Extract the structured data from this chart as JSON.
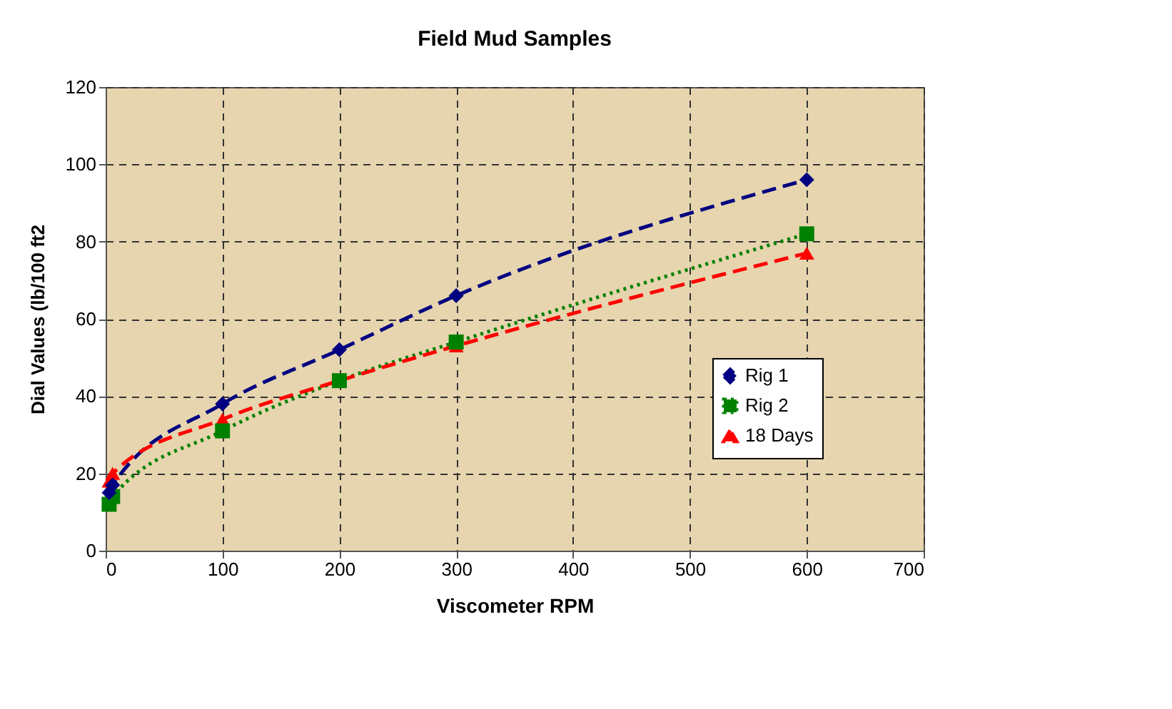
{
  "chart_data": {
    "type": "line",
    "title": "Field Mud Samples",
    "xlabel": "Viscometer RPM",
    "ylabel": "Dial Values (lb/100 ft2",
    "xlim": [
      0,
      700
    ],
    "xticks": [
      0,
      100,
      200,
      300,
      400,
      500,
      600,
      700
    ],
    "ylim": [
      0,
      120
    ],
    "yticks": [
      0,
      20,
      40,
      60,
      80,
      100,
      120
    ],
    "grid": true,
    "legend": "right",
    "series": [
      {
        "name": "Rig 1",
        "color": "#000080",
        "marker": "diamond",
        "line_style": "dashed",
        "x": [
          3,
          6,
          100,
          200,
          300,
          600
        ],
        "values": [
          15,
          17,
          38,
          52,
          66,
          96
        ]
      },
      {
        "name": "Rig 2",
        "color": "#008000",
        "marker": "square",
        "line_style": "dotted",
        "x": [
          3,
          6,
          100,
          200,
          300,
          600
        ],
        "values": [
          12,
          14,
          31,
          44,
          54,
          82
        ]
      },
      {
        "name": "18 Days",
        "color": "#ff0000",
        "marker": "triangle",
        "line_style": "dashed",
        "x": [
          3,
          6,
          100,
          200,
          300,
          600
        ],
        "values": [
          18,
          20,
          34,
          44,
          53,
          77
        ]
      }
    ]
  }
}
